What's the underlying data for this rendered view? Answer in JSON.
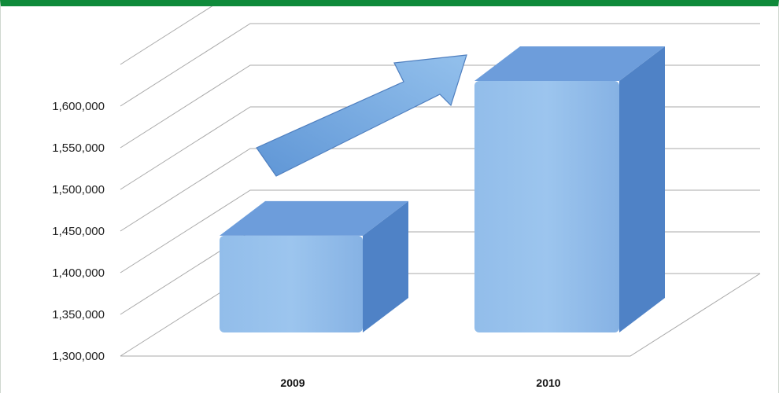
{
  "chart_data": {
    "type": "bar",
    "categories": [
      "2009",
      "2010"
    ],
    "values": [
      1435000,
      1625000
    ],
    "ylim": [
      1300000,
      1600000
    ],
    "yticks": [
      {
        "value": 1300000,
        "label": "1,300,000"
      },
      {
        "value": 1350000,
        "label": "1,350,000"
      },
      {
        "value": 1400000,
        "label": "1,400,000"
      },
      {
        "value": 1450000,
        "label": "1,450,000"
      },
      {
        "value": 1500000,
        "label": "1,500,000"
      },
      {
        "value": 1550000,
        "label": "1,550,000"
      },
      {
        "value": 1600000,
        "label": "1,600,000"
      }
    ],
    "title": "",
    "xlabel": "",
    "ylabel": "",
    "grid": true,
    "style": "3d-column",
    "annotation": "upward-arrow-icon",
    "colors": {
      "bar_front": "#8db8e8",
      "bar_top": "#6d9ddb",
      "bar_side": "#4f82c6",
      "grid": "#a9a9a9",
      "frame_top": "#0f8a3a"
    }
  }
}
